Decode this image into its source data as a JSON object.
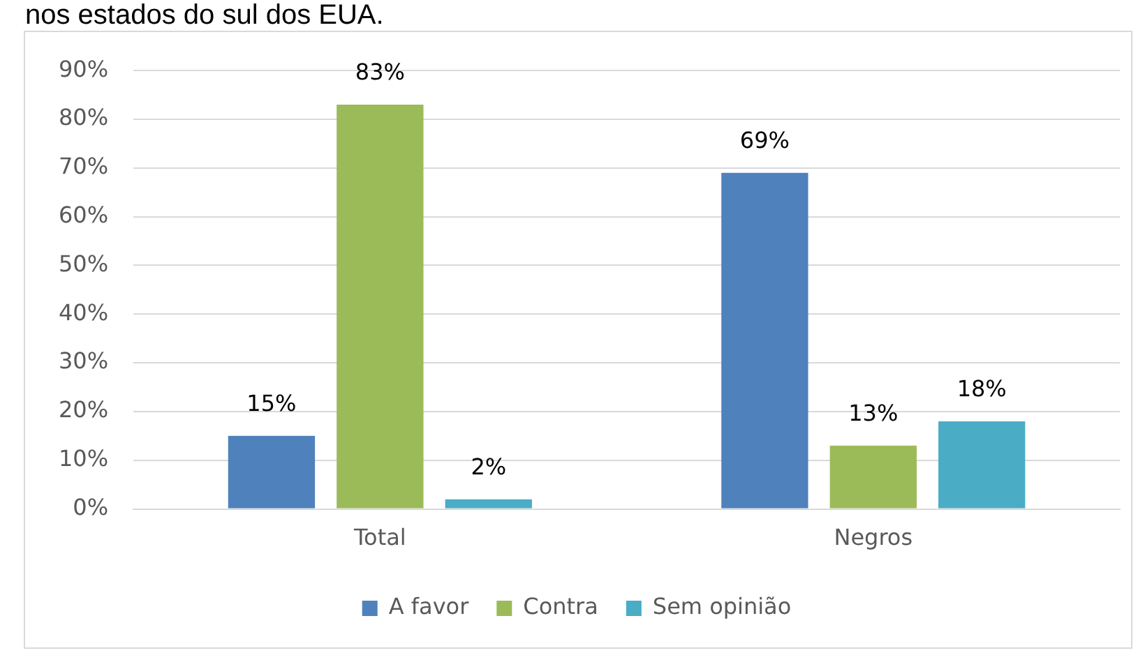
{
  "chart_data": {
    "type": "bar",
    "title": "nos estados do sul dos EUA.",
    "categories": [
      "Total",
      "Negros"
    ],
    "series": [
      {
        "name": "A favor",
        "color": "#4f81bd",
        "values": [
          15,
          69
        ]
      },
      {
        "name": "Contra",
        "color": "#9bbb59",
        "values": [
          83,
          13
        ]
      },
      {
        "name": "Sem opinião",
        "color": "#4bacc6",
        "values": [
          2,
          18
        ]
      }
    ],
    "ylim": [
      0,
      90
    ],
    "yticks": [
      {
        "value": 0,
        "label": "0%"
      },
      {
        "value": 10,
        "label": "10%"
      },
      {
        "value": 20,
        "label": "20%"
      },
      {
        "value": 30,
        "label": "30%"
      },
      {
        "value": 40,
        "label": "40%"
      },
      {
        "value": 50,
        "label": "50%"
      },
      {
        "value": 60,
        "label": "60%"
      },
      {
        "value": 70,
        "label": "70%"
      },
      {
        "value": 80,
        "label": "80%"
      },
      {
        "value": 90,
        "label": "90%"
      }
    ],
    "value_labels": [
      [
        "15%",
        "69%"
      ],
      [
        "83%",
        "13%"
      ],
      [
        "2%",
        "18%"
      ]
    ],
    "grid": "y",
    "legend": "bottom"
  }
}
